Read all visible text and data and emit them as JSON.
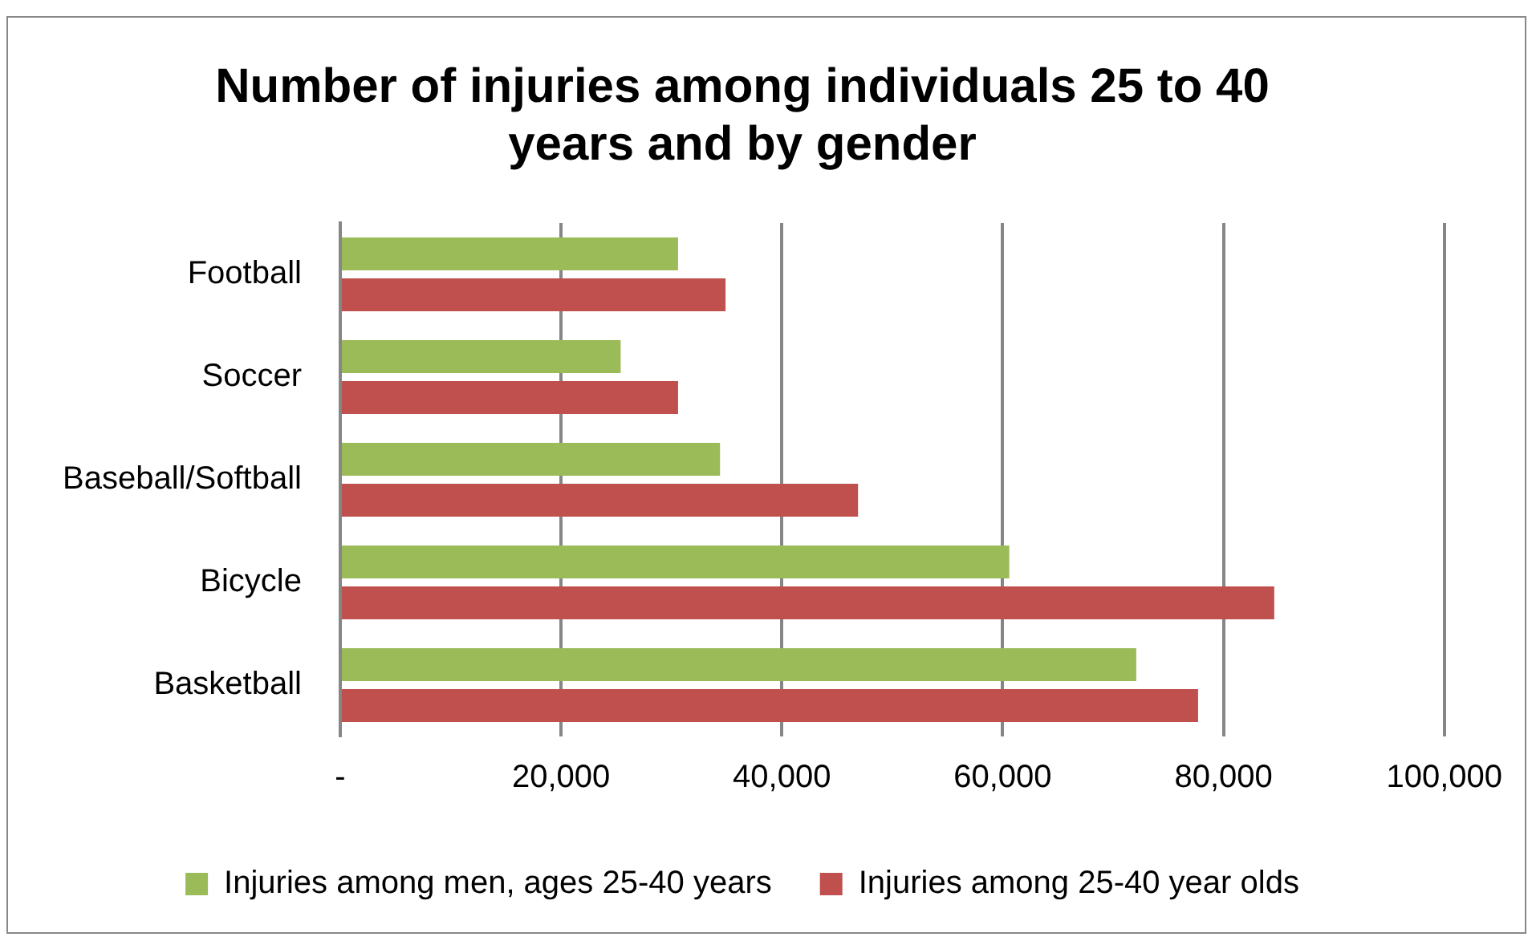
{
  "chart_data": {
    "type": "bar",
    "orientation": "horizontal",
    "title": "Number of injuries among individuals 25 to 40 years and by gender",
    "categories": [
      "Football",
      "Soccer",
      "Baseball/Softball",
      "Bicycle",
      "Basketball"
    ],
    "series": [
      {
        "name": "Injuries among men, ages 25-40 years",
        "color": "#9bbb59",
        "values": [
          30600,
          25400,
          34400,
          60600,
          72100
        ]
      },
      {
        "name": "Injuries among 25-40 year olds",
        "color": "#c0504d",
        "values": [
          34900,
          30600,
          46900,
          84600,
          77700
        ]
      }
    ],
    "xlim": [
      0,
      100000
    ],
    "xticks": [
      {
        "value": 0,
        "label": "-"
      },
      {
        "value": 20000,
        "label": "20,000"
      },
      {
        "value": 40000,
        "label": "40,000"
      },
      {
        "value": 60000,
        "label": "60,000"
      },
      {
        "value": 80000,
        "label": "80,000"
      },
      {
        "value": 100000,
        "label": "100,000"
      }
    ],
    "grid": "x",
    "legend": "bottom"
  }
}
